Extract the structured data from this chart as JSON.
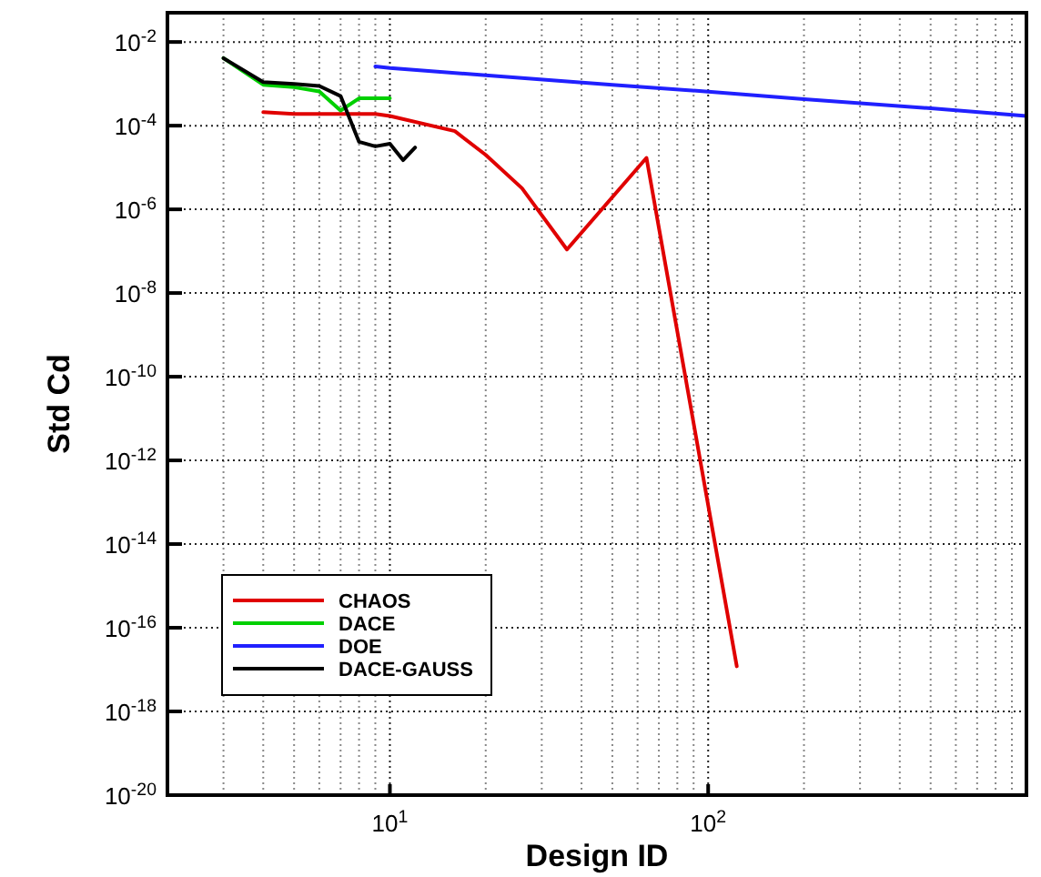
{
  "chart_data": {
    "type": "line",
    "xlabel": "Design ID",
    "ylabel": "Std Cd",
    "log": "xy",
    "grid": true,
    "legend": "bottom left",
    "marker": "none",
    "line_style": "solid",
    "xlim": [
      2,
      1000
    ],
    "ylim": [
      1e-20,
      0.05
    ],
    "xticks": [
      {
        "value": 2,
        "label": null
      },
      {
        "value": 3,
        "label": null
      },
      {
        "value": 4,
        "label": null
      },
      {
        "value": 5,
        "label": null
      },
      {
        "value": 6,
        "label": null
      },
      {
        "value": 7,
        "label": null
      },
      {
        "value": 8,
        "label": null
      },
      {
        "value": 9,
        "label": null
      },
      {
        "value": 10,
        "label": "10$^{1}$"
      },
      {
        "value": 20,
        "label": null
      },
      {
        "value": 30,
        "label": null
      },
      {
        "value": 40,
        "label": null
      },
      {
        "value": 50,
        "label": null
      },
      {
        "value": 60,
        "label": null
      },
      {
        "value": 70,
        "label": null
      },
      {
        "value": 80,
        "label": null
      },
      {
        "value": 90,
        "label": null
      },
      {
        "value": 100,
        "label": "10$^{2}$"
      },
      {
        "value": 200,
        "label": null
      },
      {
        "value": 300,
        "label": null
      },
      {
        "value": 400,
        "label": null
      },
      {
        "value": 500,
        "label": null
      },
      {
        "value": 600,
        "label": null
      },
      {
        "value": 700,
        "label": null
      },
      {
        "value": 800,
        "label": null
      },
      {
        "value": 900,
        "label": null
      }
    ],
    "yticks": [
      {
        "value": 0.01,
        "label": "10$^{-2}$"
      },
      {
        "value": 0.0001,
        "label": "10$^{-4}$"
      },
      {
        "value": 1e-06,
        "label": "10$^{-6}$"
      },
      {
        "value": 1e-08,
        "label": "10$^{-8}$"
      },
      {
        "value": 1e-10,
        "label": "10$^{-10}$"
      },
      {
        "value": 1e-12,
        "label": "10$^{-12}$"
      },
      {
        "value": 1e-14,
        "label": "10$^{-14}$"
      },
      {
        "value": 1e-16,
        "label": "10$^{-16}$"
      },
      {
        "value": 1e-18,
        "label": "10$^{-18}$"
      },
      {
        "value": 1e-20,
        "label": "10$^{-20}$"
      }
    ],
    "series": [
      {
        "name": "CHAOS",
        "color": "#e00000",
        "x": [
          4,
          5,
          6,
          7,
          8,
          9,
          10,
          16,
          20,
          26,
          36,
          64,
          123
        ],
        "values": [
          0.00021,
          0.00019,
          0.00019,
          0.00019,
          0.00019,
          0.00019,
          0.00017,
          7.4e-05,
          2e-05,
          3.2e-06,
          1.1e-07,
          1.7e-05,
          1.2e-17
        ]
      },
      {
        "name": "DACE",
        "color": "#00d000",
        "x": [
          3,
          4,
          5,
          6,
          7,
          8,
          10
        ],
        "values": [
          0.0041,
          0.00095,
          0.00083,
          0.00066,
          0.00023,
          0.00045,
          0.00045
        ]
      },
      {
        "name": "DOE",
        "color": "#2020ff",
        "x": [
          9,
          10,
          20,
          50,
          100,
          200,
          500,
          1000
        ],
        "values": [
          0.0026,
          0.0024,
          0.0016,
          0.00095,
          0.00065,
          0.00043,
          0.00026,
          0.00017
        ]
      },
      {
        "name": "DACE-GAUSS",
        "color": "#000000",
        "x": [
          3,
          4,
          5,
          6,
          7,
          8,
          9,
          10,
          11,
          12
        ],
        "values": [
          0.0041,
          0.0011,
          0.001,
          0.00089,
          0.00051,
          4.1e-05,
          3.2e-05,
          3.7e-05,
          1.5e-05,
          3e-05
        ]
      }
    ]
  }
}
